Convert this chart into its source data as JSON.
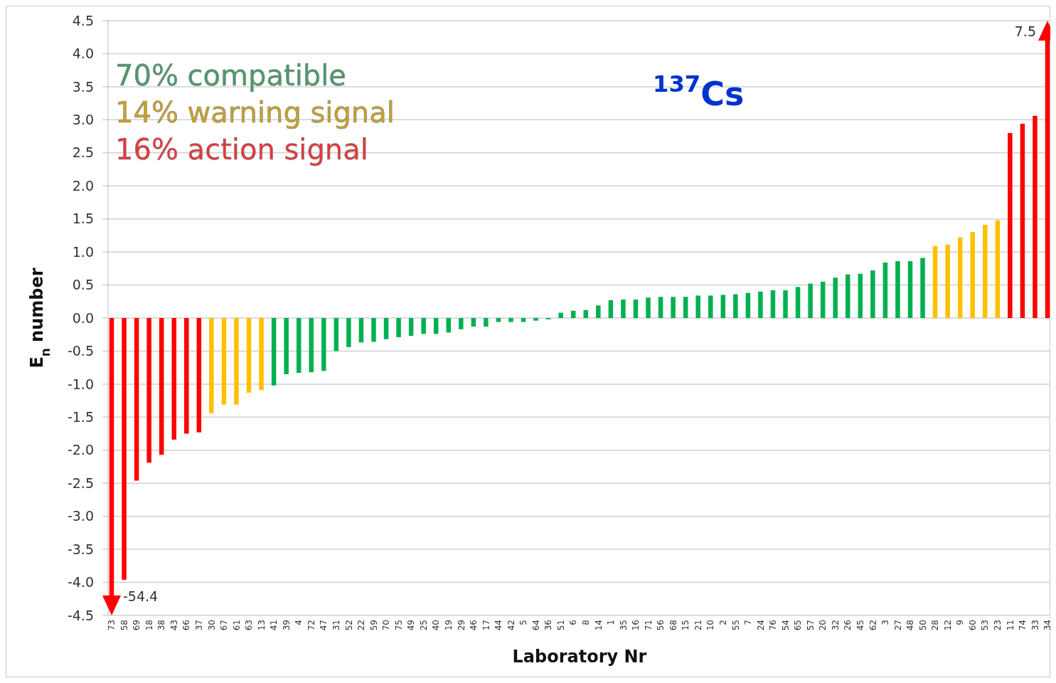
{
  "chart_data": {
    "type": "bar",
    "title": "$^{137}$Cs",
    "xlabel": "Laboratory Nr",
    "ylabel": "E$_{n}$ number",
    "annotations": [
      "70% compatible",
      "14% warning signal",
      "16% action signal",
      "-54.4",
      "7.5"
    ],
    "categories": [
      "73",
      "58",
      "69",
      "18",
      "38",
      "43",
      "66",
      "37",
      "30",
      "67",
      "61",
      "63",
      "13",
      "41",
      "39",
      "4",
      "72",
      "47",
      "31",
      "52",
      "22",
      "59",
      "70",
      "75",
      "49",
      "25",
      "40",
      "19",
      "29",
      "46",
      "17",
      "44",
      "42",
      "5",
      "64",
      "36",
      "51",
      "6",
      "8",
      "14",
      "1",
      "35",
      "16",
      "71",
      "56",
      "68",
      "15",
      "21",
      "10",
      "2",
      "55",
      "7",
      "24",
      "76",
      "54",
      "65",
      "57",
      "20",
      "32",
      "26",
      "45",
      "62",
      "3",
      "27",
      "48",
      "50",
      "28",
      "12",
      "9",
      "60",
      "53",
      "23",
      "11",
      "74",
      "33",
      "34"
    ],
    "values": [
      null,
      -3.96,
      -2.46,
      -2.19,
      -2.07,
      -1.84,
      -1.75,
      -1.73,
      -1.44,
      -1.31,
      -1.31,
      -1.13,
      -1.09,
      -1.02,
      -0.85,
      -0.83,
      -0.82,
      -0.8,
      -0.5,
      -0.44,
      -0.37,
      -0.36,
      -0.32,
      -0.29,
      -0.27,
      -0.24,
      -0.24,
      -0.22,
      -0.17,
      -0.13,
      -0.13,
      -0.06,
      -0.06,
      -0.06,
      -0.04,
      -0.02,
      0.08,
      0.11,
      0.12,
      0.19,
      0.27,
      0.28,
      0.28,
      0.31,
      0.32,
      0.32,
      0.32,
      0.34,
      0.34,
      0.35,
      0.36,
      0.38,
      0.4,
      0.42,
      0.42,
      0.47,
      0.52,
      0.55,
      0.61,
      0.66,
      0.67,
      0.72,
      0.84,
      0.86,
      0.86,
      0.91,
      1.09,
      1.11,
      1.22,
      1.3,
      1.41,
      1.48,
      2.8,
      2.94,
      3.06,
      null
    ],
    "colors": [
      "#ff0000",
      "#ff0000",
      "#ff0000",
      "#ff0000",
      "#ff0000",
      "#ff0000",
      "#ff0000",
      "#ff0000",
      "#ffc000",
      "#ffc000",
      "#ffc000",
      "#ffc000",
      "#ffc000",
      "#00b050",
      "#00b050",
      "#00b050",
      "#00b050",
      "#00b050",
      "#00b050",
      "#00b050",
      "#00b050",
      "#00b050",
      "#00b050",
      "#00b050",
      "#00b050",
      "#00b050",
      "#00b050",
      "#00b050",
      "#00b050",
      "#00b050",
      "#00b050",
      "#00b050",
      "#00b050",
      "#00b050",
      "#00b050",
      "#00b050",
      "#00b050",
      "#00b050",
      "#00b050",
      "#00b050",
      "#00b050",
      "#00b050",
      "#00b050",
      "#00b050",
      "#00b050",
      "#00b050",
      "#00b050",
      "#00b050",
      "#00b050",
      "#00b050",
      "#00b050",
      "#00b050",
      "#00b050",
      "#00b050",
      "#00b050",
      "#00b050",
      "#00b050",
      "#00b050",
      "#00b050",
      "#00b050",
      "#00b050",
      "#00b050",
      "#00b050",
      "#00b050",
      "#00b050",
      "#00b050",
      "#ffc000",
      "#ffc000",
      "#ffc000",
      "#ffc000",
      "#ffc000",
      "#ffc000",
      "#ff0000",
      "#ff0000",
      "#ff0000",
      "#ff0000"
    ],
    "ylim": [
      -4.5,
      4.5
    ],
    "yticks": [
      {
        "value": -4.5,
        "label": "-4.5"
      },
      {
        "value": -4,
        "label": "-4.0"
      },
      {
        "value": -3.5,
        "label": "-3.5"
      },
      {
        "value": -3,
        "label": "-3.0"
      },
      {
        "value": -2.5,
        "label": "-2.5"
      },
      {
        "value": -2,
        "label": "-2.0"
      },
      {
        "value": -1.5,
        "label": "-1.5"
      },
      {
        "value": -1,
        "label": "-1.0"
      },
      {
        "value": -0.5,
        "label": "-0.5"
      },
      {
        "value": 0,
        "label": "0.0"
      },
      {
        "value": 0.5,
        "label": "0.5"
      },
      {
        "value": 1,
        "label": "1.0"
      },
      {
        "value": 1.5,
        "label": "1.5"
      },
      {
        "value": 2,
        "label": "2.0"
      },
      {
        "value": 2.5,
        "label": "2.5"
      },
      {
        "value": 3,
        "label": "3.0"
      },
      {
        "value": 3.5,
        "label": "3.5"
      },
      {
        "value": 4,
        "label": "4.0"
      },
      {
        "value": 4.5,
        "label": "4.5"
      }
    ],
    "grid": "y"
  }
}
